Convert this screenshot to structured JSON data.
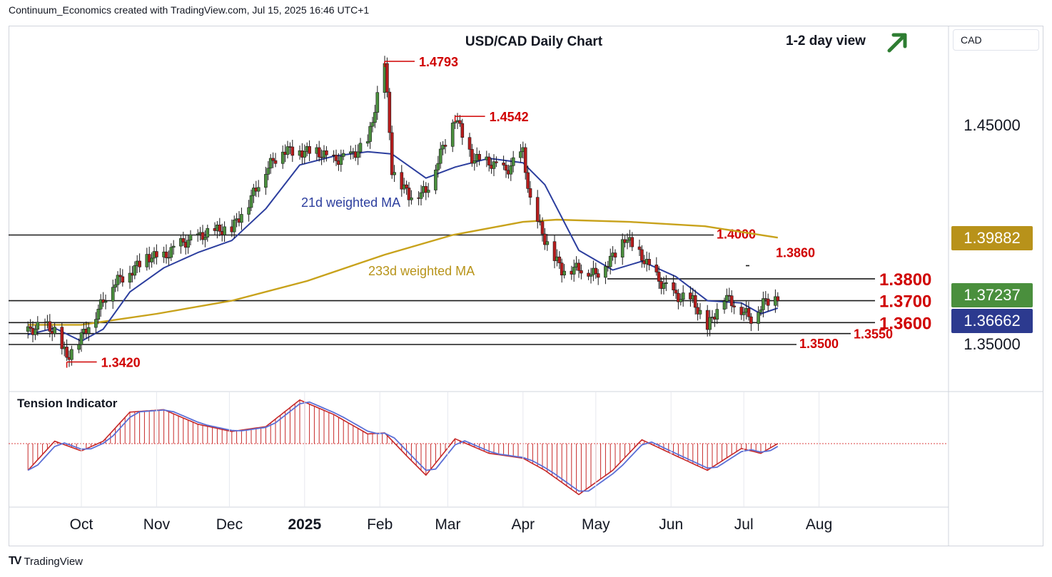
{
  "header": {
    "credit": "Continuum_Economics created with TradingView.com, Jul 15, 2025 16:46 UTC+1"
  },
  "currency_button": "CAD",
  "footer": {
    "logo": "TV",
    "brand": "TradingView"
  },
  "colors": {
    "candle_up": "#4a8f3d",
    "candle_down": "#b71c1c",
    "ma21": "#2c3e9e",
    "ma233": "#c8a21b",
    "levels": "#d00000",
    "indicator_line": "#5b6fd6"
  },
  "chart_data": {
    "type": "candlestick",
    "title": "USD/CAD Daily Chart",
    "view_label": "1-2 day view",
    "view_icon": "arrow-up-right-icon",
    "x_ticks": [
      "Oct",
      "Nov",
      "Dec",
      "2025",
      "Feb",
      "Mar",
      "Apr",
      "May",
      "Jun",
      "Jul",
      "Aug"
    ],
    "y_ticks": [
      "1.45000",
      "1.35000"
    ],
    "price_tags": [
      {
        "value": "1.39882",
        "series": "233d weighted MA"
      },
      {
        "value": "1.37237",
        "series": "last price"
      },
      {
        "value": "1.36662",
        "series": "21d weighted MA"
      }
    ],
    "levels": [
      {
        "price": 1.4,
        "label": "1.4000"
      },
      {
        "price": 1.386,
        "label": "1.3860"
      },
      {
        "price": 1.38,
        "label": "1.3800"
      },
      {
        "price": 1.37,
        "label": "1.3700"
      },
      {
        "price": 1.36,
        "label": "1.3600"
      },
      {
        "price": 1.355,
        "label": "1.3550"
      },
      {
        "price": 1.35,
        "label": "1.3500"
      }
    ],
    "annotations": [
      {
        "label": "1.4793",
        "price": 1.4793,
        "date": "2025-02-03"
      },
      {
        "label": "1.4542",
        "price": 1.4542,
        "date": "2025-03-04"
      },
      {
        "label": "1.3420",
        "price": 1.342,
        "date": "2024-09-25"
      }
    ],
    "series_labels": {
      "ma21": "21d weighted MA",
      "ma233": "233d weighted MA"
    },
    "price_path": [
      [
        "2024-09-09",
        1.356
      ],
      [
        "2024-09-16",
        1.359
      ],
      [
        "2024-09-20",
        1.356
      ],
      [
        "2024-09-25",
        1.344
      ],
      [
        "2024-09-30",
        1.352
      ],
      [
        "2024-10-07",
        1.364
      ],
      [
        "2024-10-14",
        1.378
      ],
      [
        "2024-10-21",
        1.383
      ],
      [
        "2024-10-28",
        1.39
      ],
      [
        "2024-11-04",
        1.39
      ],
      [
        "2024-11-11",
        1.396
      ],
      [
        "2024-11-18",
        1.399
      ],
      [
        "2024-11-25",
        1.402
      ],
      [
        "2024-12-02",
        1.403
      ],
      [
        "2024-12-09",
        1.415
      ],
      [
        "2024-12-16",
        1.43
      ],
      [
        "2024-12-23",
        1.439
      ],
      [
        "2024-12-30",
        1.438
      ],
      [
        "2025-01-06",
        1.438
      ],
      [
        "2025-01-13",
        1.434
      ],
      [
        "2025-01-20",
        1.436
      ],
      [
        "2025-01-27",
        1.442
      ],
      [
        "2025-02-03",
        1.4793
      ],
      [
        "2025-02-06",
        1.43
      ],
      [
        "2025-02-13",
        1.418
      ],
      [
        "2025-02-20",
        1.42
      ],
      [
        "2025-02-27",
        1.44
      ],
      [
        "2025-03-04",
        1.4542
      ],
      [
        "2025-03-11",
        1.435
      ],
      [
        "2025-03-18",
        1.433
      ],
      [
        "2025-03-25",
        1.429
      ],
      [
        "2025-04-01",
        1.438
      ],
      [
        "2025-04-04",
        1.415
      ],
      [
        "2025-04-10",
        1.398
      ],
      [
        "2025-04-17",
        1.384
      ],
      [
        "2025-04-24",
        1.385
      ],
      [
        "2025-05-01",
        1.382
      ],
      [
        "2025-05-08",
        1.39
      ],
      [
        "2025-05-13",
        1.399
      ],
      [
        "2025-05-20",
        1.39
      ],
      [
        "2025-05-27",
        1.379
      ],
      [
        "2025-06-03",
        1.372
      ],
      [
        "2025-06-10",
        1.37
      ],
      [
        "2025-06-16",
        1.358
      ],
      [
        "2025-06-23",
        1.372
      ],
      [
        "2025-06-30",
        1.366
      ],
      [
        "2025-07-04",
        1.362
      ],
      [
        "2025-07-09",
        1.369
      ],
      [
        "2025-07-15",
        1.3724
      ]
    ],
    "ma21_path": [
      [
        "2024-09-09",
        1.3545
      ],
      [
        "2024-09-20",
        1.3575
      ],
      [
        "2024-10-01",
        1.3515
      ],
      [
        "2024-10-10",
        1.357
      ],
      [
        "2024-10-21",
        1.374
      ],
      [
        "2024-11-04",
        1.385
      ],
      [
        "2024-11-18",
        1.392
      ],
      [
        "2024-12-02",
        1.3975
      ],
      [
        "2024-12-16",
        1.412
      ],
      [
        "2024-12-30",
        1.432
      ],
      [
        "2025-01-13",
        1.436
      ],
      [
        "2025-01-27",
        1.438
      ],
      [
        "2025-02-06",
        1.437
      ],
      [
        "2025-02-20",
        1.426
      ],
      [
        "2025-03-04",
        1.431
      ],
      [
        "2025-03-18",
        1.435
      ],
      [
        "2025-04-01",
        1.433
      ],
      [
        "2025-04-10",
        1.423
      ],
      [
        "2025-04-24",
        1.393
      ],
      [
        "2025-05-08",
        1.384
      ],
      [
        "2025-05-20",
        1.388
      ],
      [
        "2025-06-03",
        1.381
      ],
      [
        "2025-06-16",
        1.37
      ],
      [
        "2025-06-30",
        1.369
      ],
      [
        "2025-07-08",
        1.364
      ],
      [
        "2025-07-15",
        1.3666
      ]
    ],
    "ma233_path": [
      [
        "2024-09-09",
        1.359
      ],
      [
        "2024-10-01",
        1.359
      ],
      [
        "2024-11-01",
        1.364
      ],
      [
        "2024-12-02",
        1.37
      ],
      [
        "2025-01-02",
        1.379
      ],
      [
        "2025-02-03",
        1.391
      ],
      [
        "2025-03-03",
        1.4
      ],
      [
        "2025-04-01",
        1.406
      ],
      [
        "2025-04-15",
        1.407
      ],
      [
        "2025-05-15",
        1.406
      ],
      [
        "2025-06-15",
        1.404
      ],
      [
        "2025-07-15",
        1.3988
      ]
    ],
    "indicator": {
      "title": "Tension Indicator",
      "values": [
        [
          "2024-09-09",
          -0.55
        ],
        [
          "2024-09-20",
          0.05
        ],
        [
          "2024-10-01",
          -0.15
        ],
        [
          "2024-10-10",
          0.05
        ],
        [
          "2024-10-21",
          0.65
        ],
        [
          "2024-11-04",
          0.7
        ],
        [
          "2024-11-18",
          0.4
        ],
        [
          "2024-12-02",
          0.25
        ],
        [
          "2024-12-16",
          0.35
        ],
        [
          "2024-12-30",
          0.9
        ],
        [
          "2025-01-13",
          0.6
        ],
        [
          "2025-01-27",
          0.2
        ],
        [
          "2025-02-03",
          0.22
        ],
        [
          "2025-02-13",
          -0.3
        ],
        [
          "2025-02-20",
          -0.65
        ],
        [
          "2025-03-04",
          0.1
        ],
        [
          "2025-03-18",
          -0.2
        ],
        [
          "2025-04-01",
          -0.3
        ],
        [
          "2025-04-10",
          -0.55
        ],
        [
          "2025-04-24",
          -1.05
        ],
        [
          "2025-05-08",
          -0.55
        ],
        [
          "2025-05-20",
          0.08
        ],
        [
          "2025-06-03",
          -0.25
        ],
        [
          "2025-06-16",
          -0.55
        ],
        [
          "2025-06-30",
          -0.1
        ],
        [
          "2025-07-08",
          -0.2
        ],
        [
          "2025-07-15",
          0.0
        ]
      ]
    }
  }
}
